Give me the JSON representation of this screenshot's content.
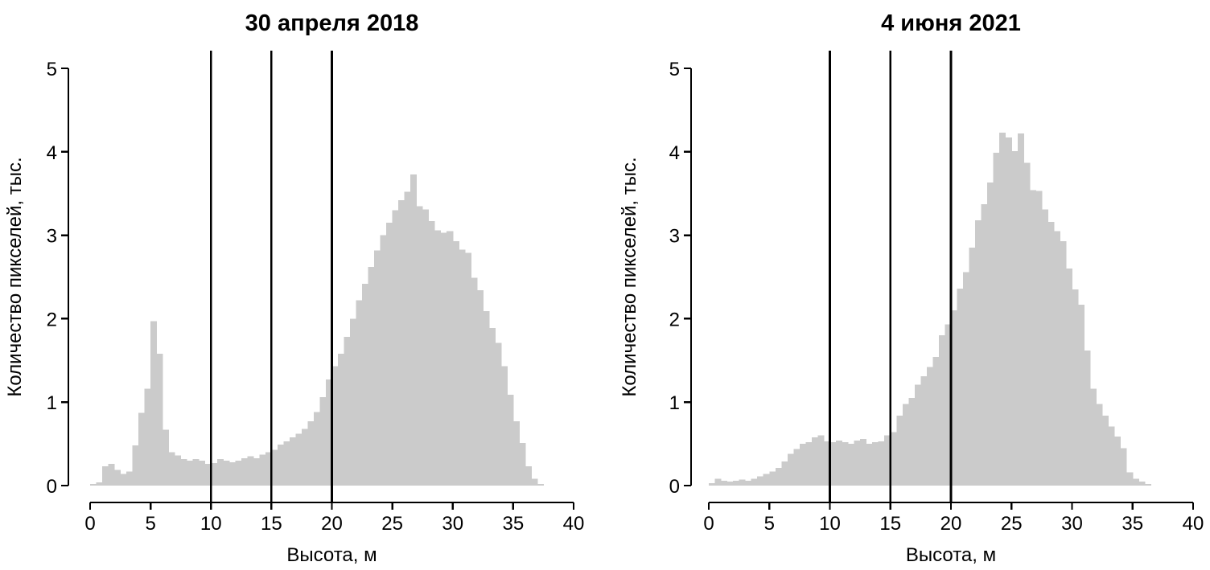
{
  "figure": {
    "background": "#ffffff",
    "bar_fill": "#cbcbcb",
    "axis_color": "#000000"
  },
  "chart_data": [
    {
      "type": "bar",
      "title": "30 апреля 2018",
      "xlabel": "Высота, м",
      "ylabel": "Количество пикселей, тыс.",
      "bin_start": 0,
      "bin_width": 0.5,
      "xlim": [
        0,
        40
      ],
      "ylim": [
        0,
        5.2
      ],
      "x_ticks": [
        0,
        5,
        10,
        15,
        20,
        25,
        30,
        35,
        40
      ],
      "y_ticks": [
        0,
        1,
        2,
        3,
        4,
        5
      ],
      "reference_lines_x": [
        10,
        15,
        20
      ],
      "grid": false,
      "legend": false,
      "values": [
        0.02,
        0.04,
        0.23,
        0.26,
        0.19,
        0.14,
        0.17,
        0.48,
        0.87,
        1.16,
        1.97,
        1.58,
        0.67,
        0.4,
        0.36,
        0.32,
        0.3,
        0.32,
        0.3,
        0.26,
        0.27,
        0.32,
        0.3,
        0.28,
        0.3,
        0.33,
        0.35,
        0.33,
        0.37,
        0.4,
        0.43,
        0.49,
        0.53,
        0.58,
        0.62,
        0.68,
        0.77,
        0.88,
        1.06,
        1.27,
        1.43,
        1.58,
        1.78,
        2.0,
        2.22,
        2.42,
        2.62,
        2.82,
        3.0,
        3.15,
        3.3,
        3.42,
        3.52,
        3.73,
        3.35,
        3.31,
        3.17,
        3.06,
        3.03,
        3.05,
        2.93,
        2.83,
        2.79,
        2.49,
        2.34,
        2.09,
        1.89,
        1.71,
        1.43,
        1.09,
        0.77,
        0.51,
        0.23,
        0.08,
        0.02
      ]
    },
    {
      "type": "bar",
      "title": "4 июня 2021",
      "xlabel": "Высота, м",
      "ylabel": "Количество пикселей, тыс.",
      "bin_start": 0,
      "bin_width": 0.5,
      "xlim": [
        0,
        40
      ],
      "ylim": [
        0,
        5.2
      ],
      "x_ticks": [
        0,
        5,
        10,
        15,
        20,
        25,
        30,
        35,
        40
      ],
      "y_ticks": [
        0,
        1,
        2,
        3,
        4,
        5
      ],
      "reference_lines_x": [
        10,
        15,
        20
      ],
      "grid": false,
      "legend": false,
      "values": [
        0.03,
        0.08,
        0.06,
        0.05,
        0.06,
        0.07,
        0.06,
        0.08,
        0.11,
        0.14,
        0.17,
        0.21,
        0.29,
        0.38,
        0.44,
        0.5,
        0.52,
        0.58,
        0.6,
        0.53,
        0.52,
        0.54,
        0.52,
        0.5,
        0.54,
        0.56,
        0.5,
        0.52,
        0.53,
        0.6,
        0.64,
        0.84,
        0.98,
        1.05,
        1.21,
        1.31,
        1.42,
        1.54,
        1.8,
        1.93,
        2.1,
        2.36,
        2.56,
        2.85,
        3.18,
        3.37,
        3.63,
        3.99,
        4.23,
        4.17,
        4.01,
        4.22,
        3.87,
        3.54,
        3.53,
        3.31,
        3.16,
        3.05,
        2.93,
        2.6,
        2.35,
        2.17,
        1.62,
        1.16,
        0.98,
        0.84,
        0.71,
        0.59,
        0.45,
        0.16,
        0.08,
        0.05,
        0.02
      ]
    }
  ]
}
